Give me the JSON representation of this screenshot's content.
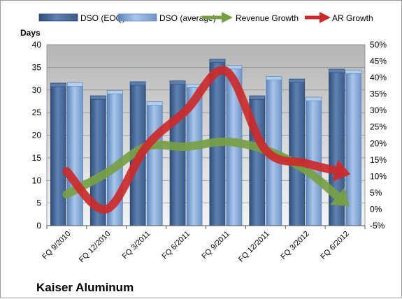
{
  "chart_data": {
    "type": "bar",
    "title": "",
    "company_label": "Kaiser Aluminum",
    "ylabel": "Days",
    "y2label": "",
    "ylim": [
      0,
      40
    ],
    "y_ticks": [
      0,
      5,
      10,
      15,
      20,
      25,
      30,
      35,
      40
    ],
    "y2lim": [
      -5,
      50
    ],
    "y2_ticks": [
      "-5%",
      "0%",
      "5%",
      "10%",
      "15%",
      "20%",
      "25%",
      "30%",
      "35%",
      "40%",
      "45%",
      "50%"
    ],
    "y2_tick_values": [
      -5,
      0,
      5,
      10,
      15,
      20,
      25,
      30,
      35,
      40,
      45,
      50
    ],
    "grid": true,
    "legend_position": "top",
    "categories": [
      "FQ 9/2010",
      "FQ 12/2010",
      "FQ 3/2011",
      "FQ 6/2011",
      "FQ 9/2011",
      "FQ 12/2011",
      "FQ 3/2012",
      "FQ 6/2012"
    ],
    "series": [
      {
        "name": "DSO (EOQ)",
        "type": "bar",
        "axis": "left",
        "color": "#4a6c9b",
        "values": [
          31.5,
          28.7,
          31.8,
          32.0,
          36.8,
          28.7,
          32.4,
          34.6
        ]
      },
      {
        "name": "DSO (average)",
        "type": "bar",
        "axis": "left",
        "color": "#7fa6d6",
        "values": [
          31.6,
          29.9,
          27.4,
          31.3,
          35.4,
          33.0,
          28.4,
          34.4
        ]
      },
      {
        "name": "Revenue Growth",
        "type": "arrow-line",
        "axis": "right",
        "unit": "%",
        "color": "#77a044",
        "values": [
          4.5,
          11,
          19,
          19,
          20.5,
          18,
          12,
          2
        ]
      },
      {
        "name": "AR Growth",
        "type": "arrow-line",
        "axis": "right",
        "unit": "%",
        "color": "#cc2a2a",
        "values": [
          11.5,
          0,
          19,
          30,
          42,
          18,
          14,
          11
        ]
      }
    ]
  }
}
